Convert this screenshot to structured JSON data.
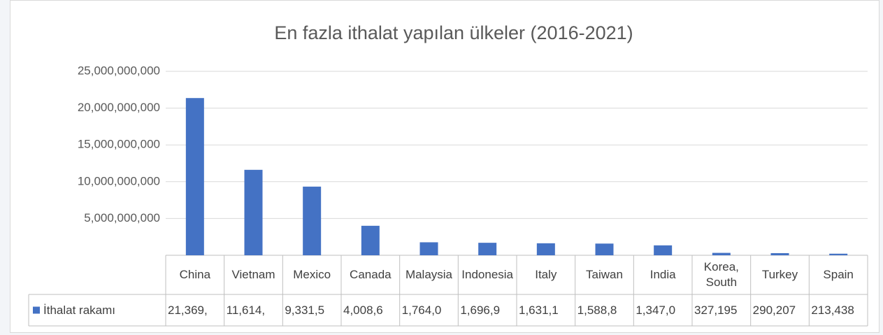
{
  "chart_data": {
    "type": "bar",
    "title": "En fazla ithalat yapılan ülkeler (2016-2021)",
    "categories": [
      "China",
      "Vietnam",
      "Mexico",
      "Canada",
      "Malaysia",
      "Indonesia",
      "Italy",
      "Taiwan",
      "India",
      "Korea, South",
      "Turkey",
      "Spain"
    ],
    "series": [
      {
        "name": "İthalat rakamı",
        "color": "#4472c4",
        "values": [
          21369000000,
          11614000000,
          9331500000,
          4008600000,
          1764000000,
          1696900000,
          1631100000,
          1588800000,
          1347000000,
          327195000,
          290207000,
          213438000
        ],
        "value_labels": [
          "21,369,",
          "11,614,",
          "9,331,5",
          "4,008,6",
          "1,764,0",
          "1,696,9",
          "1,631,1",
          "1,588,8",
          "1,347,0",
          "327,195",
          "290,207",
          "213,438"
        ]
      }
    ],
    "ylim": [
      0,
      25000000000
    ],
    "yticks": [
      {
        "value": 5000000000,
        "label": "5,000,000,000"
      },
      {
        "value": 10000000000,
        "label": "10,000,000,000"
      },
      {
        "value": 15000000000,
        "label": "15,000,000,000"
      },
      {
        "value": 20000000000,
        "label": "20,000,000,000"
      },
      {
        "value": 25000000000,
        "label": "25,000,000,000"
      }
    ],
    "grid": true
  }
}
